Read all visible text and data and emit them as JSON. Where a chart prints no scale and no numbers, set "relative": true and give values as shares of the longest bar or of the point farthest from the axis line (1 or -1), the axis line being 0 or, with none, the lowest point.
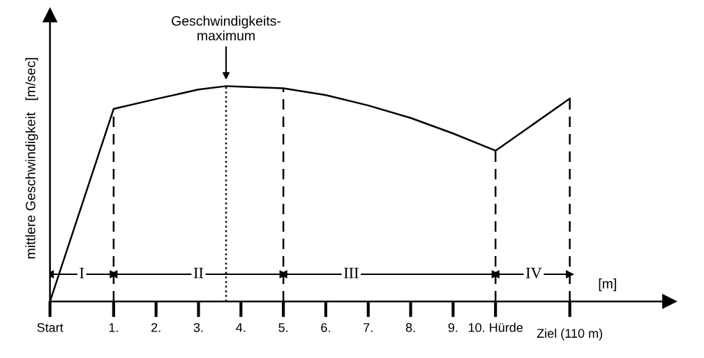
{
  "chart_data": {
    "type": "line",
    "relative": true,
    "ylabel": "mittlere Geschwindigkeit   [m/sec]",
    "xlabel": "[m]",
    "x": [
      -0.5,
      1,
      2,
      3,
      3.65,
      4,
      5,
      6,
      7,
      8,
      9,
      10,
      11.75
    ],
    "series": [
      {
        "color": "#000000",
        "values": [
          0,
          0.894,
          0.94,
          0.984,
          1.0,
          0.997,
          0.99,
          0.958,
          0.91,
          0.852,
          0.78,
          0.7,
          0.942
        ]
      }
    ],
    "xlim": [
      -0.5,
      14.1
    ],
    "ylim": [
      0,
      1.33
    ],
    "xticks": [
      {
        "value": -0.5,
        "label": "Start"
      },
      {
        "value": 1,
        "label": "1."
      },
      {
        "value": 2,
        "label": "2."
      },
      {
        "value": 3,
        "label": "3."
      },
      {
        "value": 4,
        "label": "4."
      },
      {
        "value": 5,
        "label": "5."
      },
      {
        "value": 6,
        "label": "6."
      },
      {
        "value": 7,
        "label": "7."
      },
      {
        "value": 8,
        "label": "8."
      },
      {
        "value": 9,
        "label": "9."
      },
      {
        "value": 10,
        "label": "10. Hürde"
      },
      {
        "value": 11.75,
        "label": null
      }
    ],
    "ref_lines": [
      {
        "axis": "x",
        "value": 1,
        "line_style": "dashed"
      },
      {
        "axis": "x",
        "value": 3.65,
        "line_style": "dotted",
        "label": "Geschwindigkeits-\nmaximum"
      },
      {
        "axis": "x",
        "value": 5,
        "line_style": "dashed"
      },
      {
        "axis": "x",
        "value": 10,
        "line_style": "dashed"
      },
      {
        "axis": "x",
        "value": 11.75,
        "line_style": "dashed"
      }
    ],
    "annotations": [
      {
        "text": "I",
        "x": 0.25,
        "y": 0.126
      },
      {
        "text": "II",
        "x": 3.0,
        "y": 0.126
      },
      {
        "text": "III",
        "x": 6.6,
        "y": 0.126
      },
      {
        "text": "IV",
        "x": 10.9,
        "y": 0.126
      },
      "Ziel (110 m)"
    ],
    "grid": false,
    "legend": false,
    "marker": "none",
    "line_style": "solid"
  }
}
